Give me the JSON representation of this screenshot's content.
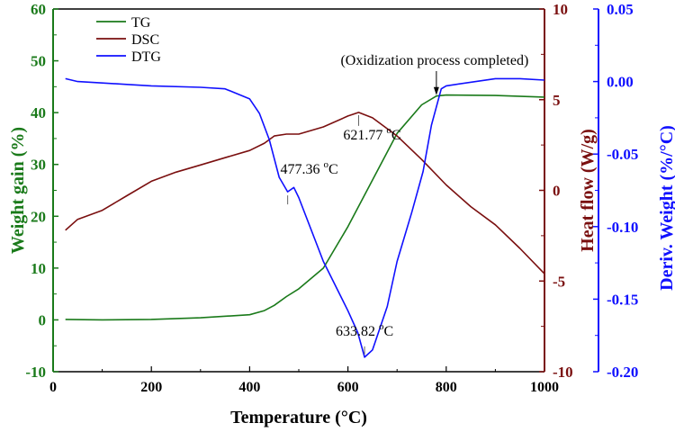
{
  "chart_data": {
    "type": "line",
    "xlabel": "Temperature (°C)",
    "xlabel_parts": {
      "main": "Temperature (",
      "sup": "o",
      "tail": "C)"
    },
    "xlim": [
      0,
      1000
    ],
    "xticks": [
      "0",
      "200",
      "400",
      "600",
      "800",
      "1000"
    ],
    "axes": {
      "left": {
        "label": "Weight gain (%)",
        "ylim": [
          -10,
          60
        ],
        "ticks": [
          "-10",
          "0",
          "10",
          "20",
          "30",
          "40",
          "50",
          "60"
        ],
        "color": "#1a7a1a"
      },
      "right1": {
        "label": "Heat flow (W/g)",
        "ylim": [
          -10,
          10
        ],
        "ticks": [
          "-10",
          "-5",
          "0",
          "5",
          "10"
        ],
        "color": "#7a0f0f"
      },
      "right2": {
        "label": "Deriv. Weight (%/°C)",
        "label_parts": {
          "main": "Deriv. Weight (%/",
          "sup": "o",
          "tail": "C)"
        },
        "ylim": [
          -0.2,
          0.05
        ],
        "ticks": [
          "-0.20",
          "-0.15",
          "-0.10",
          "-0.05",
          "0.00",
          "0.05"
        ],
        "color": "#1010ff"
      }
    },
    "legend": {
      "placement": "top-left",
      "entries": [
        "TG",
        "DSC",
        "DTG"
      ]
    },
    "series": [
      {
        "name": "TG",
        "axis": "left",
        "color": "#1a7a1a",
        "x": [
          25,
          100,
          200,
          300,
          400,
          430,
          450,
          475,
          500,
          550,
          600,
          650,
          700,
          750,
          780,
          800,
          900,
          1000
        ],
        "y": [
          0.1,
          0,
          0.1,
          0.4,
          1,
          1.8,
          2.8,
          4.5,
          6,
          10,
          18,
          27,
          36,
          41.5,
          43.2,
          43.4,
          43.3,
          43
        ]
      },
      {
        "name": "DSC",
        "axis": "right1",
        "color": "#7a0f0f",
        "x": [
          25,
          50,
          100,
          150,
          200,
          250,
          300,
          350,
          400,
          430,
          450,
          475,
          500,
          550,
          600,
          621.77,
          650,
          700,
          750,
          800,
          850,
          900,
          950,
          1000
        ],
        "y": [
          -2.2,
          -1.6,
          -1.1,
          -0.3,
          0.5,
          1,
          1.4,
          1.8,
          2.2,
          2.6,
          3,
          3.1,
          3.1,
          3.5,
          4.1,
          4.3,
          4,
          3,
          1.7,
          0.3,
          -0.9,
          -1.9,
          -3.2,
          -4.6
        ]
      },
      {
        "name": "DTG",
        "axis": "right2",
        "color": "#1010ff",
        "x": [
          25,
          50,
          100,
          150,
          200,
          300,
          350,
          400,
          420,
          440,
          460,
          477.36,
          490,
          500,
          550,
          600,
          620,
          633.82,
          650,
          680,
          700,
          730,
          753,
          770,
          790,
          800,
          900,
          950,
          1000
        ],
        "y": [
          0.002,
          0,
          -0.001,
          -0.002,
          -0.003,
          -0.004,
          -0.005,
          -0.012,
          -0.022,
          -0.04,
          -0.066,
          -0.076,
          -0.073,
          -0.08,
          -0.124,
          -0.158,
          -0.173,
          -0.19,
          -0.185,
          -0.155,
          -0.124,
          -0.09,
          -0.062,
          -0.03,
          -0.005,
          -0.003,
          0.002,
          0.002,
          0.001
        ]
      }
    ],
    "annotations": [
      {
        "text": "(Oxidization process completed)",
        "x": 780,
        "series": "TG"
      },
      {
        "text": "621.77 °C",
        "x": 621.77,
        "series": "DSC",
        "num": "621.77 ",
        "sup": "o",
        "unit": "C"
      },
      {
        "text": "477.36 °C",
        "x": 477.36,
        "series": "DTG",
        "num": "477.36 ",
        "sup": "o",
        "unit": "C"
      },
      {
        "text": "633.82 °C",
        "x": 633.82,
        "series": "DTG",
        "num": "633.82 ",
        "sup": "o",
        "unit": "C"
      }
    ],
    "grid": false
  }
}
